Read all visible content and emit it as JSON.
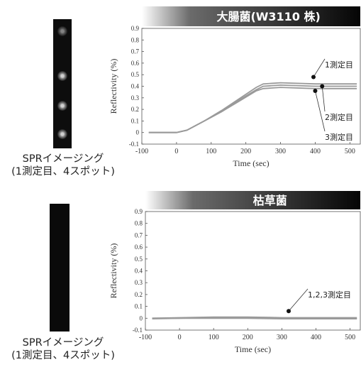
{
  "panels": [
    {
      "caption_line1": "SPRイメージング",
      "caption_line2": "(1測定目、4スポット)"
    },
    {
      "caption_line1": "SPRイメージング",
      "caption_line2": "(1測定目、4スポット)"
    }
  ],
  "chart_data": [
    {
      "type": "line",
      "title": "大腸菌(W3110 株)",
      "xlabel": "Time (sec)",
      "ylabel": "Reflectivity  (%)",
      "xlim": [
        -100,
        530
      ],
      "ylim": [
        -0.1,
        0.9
      ],
      "xticks": [
        -100,
        0,
        100,
        200,
        300,
        400,
        500
      ],
      "yticks": [
        -0.1,
        0,
        0.1,
        0.2,
        0.3,
        0.4,
        0.5,
        0.6,
        0.7,
        0.8,
        0.9
      ],
      "grid": false,
      "series_color": "#9a9a9a",
      "series": [
        {
          "x": [
            -80,
            0,
            30,
            80,
            130,
            180,
            230,
            250,
            300,
            400,
            450,
            520
          ],
          "y": [
            0,
            0,
            0.02,
            0.1,
            0.19,
            0.29,
            0.39,
            0.42,
            0.43,
            0.42,
            0.42,
            0.42
          ]
        },
        {
          "x": [
            -80,
            0,
            30,
            80,
            130,
            180,
            230,
            250,
            300,
            400,
            450,
            520
          ],
          "y": [
            0,
            0,
            0.02,
            0.1,
            0.18,
            0.28,
            0.37,
            0.4,
            0.41,
            0.4,
            0.4,
            0.4
          ]
        },
        {
          "x": [
            -80,
            0,
            30,
            80,
            130,
            180,
            230,
            250,
            300,
            400,
            450,
            520
          ],
          "y": [
            0,
            0,
            0.02,
            0.1,
            0.18,
            0.27,
            0.36,
            0.38,
            0.39,
            0.38,
            0.38,
            0.38
          ]
        }
      ],
      "annotations": [
        {
          "label": "1測定目",
          "point": [
            395,
            0.48
          ]
        },
        {
          "label": "2測定目",
          "point": [
            420,
            0.4
          ]
        },
        {
          "label": "3測定目",
          "point": [
            400,
            0.36
          ]
        }
      ]
    },
    {
      "type": "line",
      "title": "枯草菌",
      "xlabel": "Time (sec)",
      "ylabel": "Reflectivity  (%)",
      "xlim": [
        -100,
        530
      ],
      "ylim": [
        -0.1,
        0.9
      ],
      "xticks": [
        -100,
        0,
        100,
        200,
        300,
        400,
        500
      ],
      "yticks": [
        -0.1,
        0,
        0.1,
        0.2,
        0.3,
        0.4,
        0.5,
        0.6,
        0.7,
        0.8,
        0.9
      ],
      "grid": false,
      "series_color": "#9a9a9a",
      "series": [
        {
          "x": [
            -80,
            0,
            100,
            200,
            300,
            400,
            520
          ],
          "y": [
            0,
            0.005,
            0.01,
            0.01,
            0.005,
            0.005,
            0.005
          ]
        },
        {
          "x": [
            -80,
            0,
            100,
            200,
            300,
            400,
            520
          ],
          "y": [
            0,
            0,
            0.005,
            0.005,
            0,
            0,
            0
          ]
        },
        {
          "x": [
            -80,
            0,
            100,
            200,
            300,
            400,
            520
          ],
          "y": [
            -0.005,
            0,
            0,
            0,
            -0.005,
            -0.005,
            -0.005
          ]
        }
      ],
      "annotations": [
        {
          "label": "1,2,3測定目",
          "point": [
            320,
            0.06
          ]
        }
      ]
    }
  ]
}
